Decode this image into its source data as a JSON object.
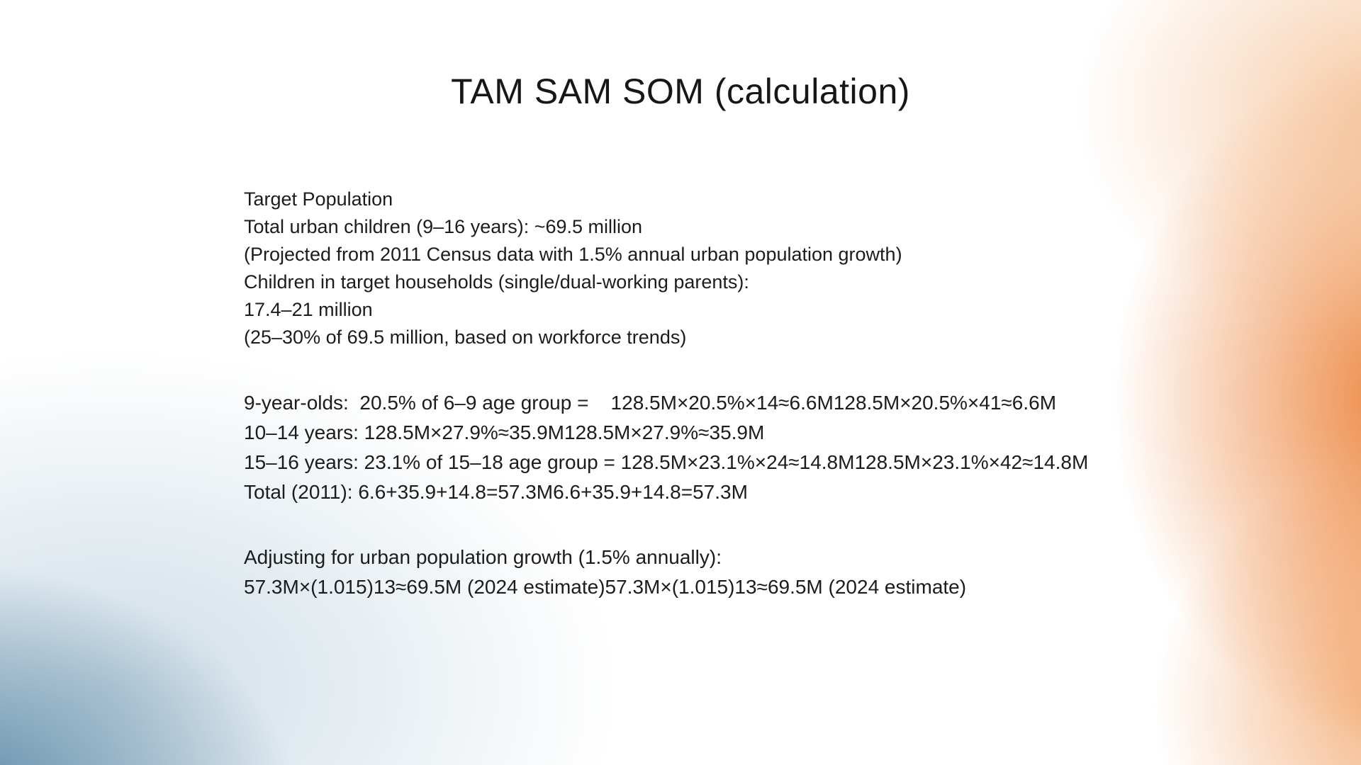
{
  "slide": {
    "title": "TAM SAM SOM (calculation)",
    "colors": {
      "background": "#ffffff",
      "accent_orange": "#eb7a2c",
      "accent_peach": "#f4ba8a",
      "accent_blue": "#427698",
      "text": "#1c1c1c"
    },
    "blocks": {
      "population": {
        "lines": [
          "Target Population",
          "Total urban children (9–16 years): ~69.5 million",
          "(Projected from 2011 Census data with 1.5% annual urban population growth)",
          "Children in target households (single/dual-working parents):",
          "17.4–21 million",
          "(25–30% of 69.5 million, based on workforce trends)"
        ]
      },
      "calc": {
        "lines": [
          "9-year-olds:  20.5% of 6–9 age group =    128.5M×20.5%×14≈6.6M128.5M×20.5%×41≈6.6M",
          "10–14 years: 128.5M×27.9%≈35.9M128.5M×27.9%≈35.9M",
          "15–16 years: 23.1% of 15–18 age group = 128.5M×23.1%×24≈14.8M128.5M×23.1%×42≈14.8M",
          "Total (2011): 6.6+35.9+14.8=57.3M6.6+35.9+14.8=57.3M"
        ]
      },
      "growth": {
        "lines": [
          "Adjusting for urban population growth (1.5% annually):",
          "57.3M×(1.015)13≈69.5M (2024 estimate)57.3M×(1.015)13≈69.5M (2024 estimate)"
        ]
      }
    }
  }
}
